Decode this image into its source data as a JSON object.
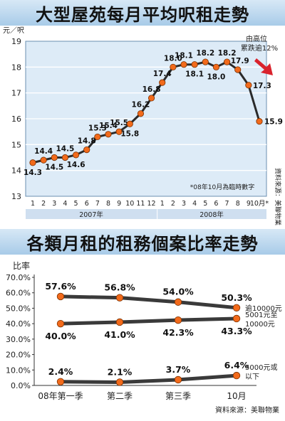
{
  "chart_data": [
    {
      "type": "line",
      "title": "大型屋苑每月平均呎租走勢",
      "ylabel": "元／呎",
      "ylim": [
        13,
        19
      ],
      "yticks": [
        "19",
        "18",
        "17",
        "16",
        "15",
        "14",
        "13"
      ],
      "categories": [
        "1",
        "2",
        "3",
        "4",
        "5",
        "6",
        "7",
        "8",
        "9",
        "10",
        "11",
        "12",
        "1",
        "2",
        "3",
        "4",
        "5",
        "6",
        "7",
        "8",
        "9",
        "10月*"
      ],
      "year_groups": [
        "2007年",
        "2008年"
      ],
      "values": [
        14.3,
        14.4,
        14.5,
        14.5,
        14.6,
        14.8,
        15.3,
        15.4,
        15.5,
        15.8,
        16.2,
        16.8,
        17.4,
        18.0,
        18.1,
        18.1,
        18.2,
        18.0,
        18.2,
        17.9,
        17.3,
        15.9
      ],
      "value_labels": [
        "14.3",
        "14.4",
        "14.5",
        "14.5",
        "14.6",
        "14.8",
        "15.3",
        "15.4",
        "15.5",
        "15.8",
        "16.2",
        "16.8",
        "17.4",
        "18.0",
        "18.1",
        "18.1",
        "18.2",
        "18.0",
        "18.2",
        "17.9",
        "17.3",
        "15.9"
      ],
      "annotation": [
        "由高位",
        "累跌逾12%"
      ],
      "footnote": "*08年10月為臨時數字",
      "source": "資料來源：美聯物業",
      "grid": true,
      "colors": {
        "line": "#2a2a2a",
        "marker": "#f26a1b",
        "arrow": "#d9232d",
        "plot_bg": "#ddebf7"
      }
    },
    {
      "type": "line",
      "title": "各類月租的租務個案比率走勢",
      "ylabel": "比率",
      "ylim": [
        0,
        70
      ],
      "yticks": [
        "70.0%",
        "60.0%",
        "50.0%",
        "40.0%",
        "30.0%",
        "20.0%",
        "10.0%",
        "0.0%"
      ],
      "categories": [
        "08年第一季",
        "第二季",
        "第三季",
        "10月"
      ],
      "series": [
        {
          "name": "逾10000元",
          "values": [
            57.6,
            56.8,
            54.0,
            50.3
          ],
          "labels": [
            "57.6%",
            "56.8%",
            "54.0%",
            "50.3%"
          ]
        },
        {
          "name": "5001元至10000元",
          "values": [
            40.0,
            41.0,
            42.3,
            43.3
          ],
          "labels": [
            "40.0%",
            "41.0%",
            "42.3%",
            "43.3%"
          ]
        },
        {
          "name": "5000元或以下",
          "values": [
            2.4,
            2.1,
            3.7,
            6.4
          ],
          "labels": [
            "2.4%",
            "2.1%",
            "3.7%",
            "6.4%"
          ]
        }
      ],
      "legend_lines": [
        [
          "逾10000元"
        ],
        [
          "5001元至",
          "10000元"
        ],
        [
          "5000元或",
          "以下"
        ]
      ],
      "source": "資料來源：美聯物業",
      "grid": false,
      "colors": {
        "line": "#3a3a3a",
        "marker": "#f26a1b"
      }
    }
  ]
}
